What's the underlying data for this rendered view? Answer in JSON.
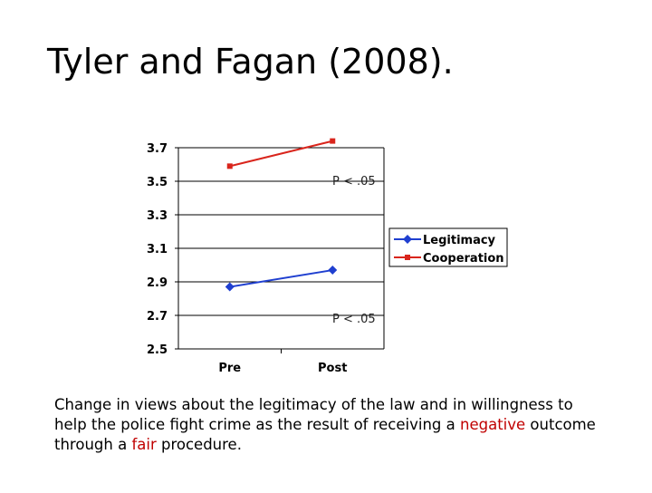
{
  "slide": {
    "title": "Tyler and Fagan (2008).",
    "caption": {
      "part1": "Change in views about the legitimacy of the law and in willingness to help the police fight crime as the result of receiving a ",
      "highlight1": "negative",
      "part2": " outcome through a ",
      "highlight2": "fair",
      "part3": " procedure."
    }
  },
  "chart_data": {
    "type": "line",
    "categories": [
      "Pre",
      "Post"
    ],
    "series": [
      {
        "name": "Legitimacy",
        "values": [
          2.87,
          2.97
        ],
        "color": "#1f3fd0",
        "marker": "diamond"
      },
      {
        "name": "Cooperation",
        "values": [
          3.59,
          3.74
        ],
        "color": "#d9251c",
        "marker": "square"
      }
    ],
    "ylim": [
      2.5,
      3.7
    ],
    "yticks": [
      "3.7",
      "3.5",
      "3.3",
      "3.1",
      "2.9",
      "2.7",
      "2.5"
    ],
    "grid": "horizontal",
    "legend": "right",
    "annotations": [
      "P < .05",
      "P < .05"
    ],
    "xlabel": "",
    "ylabel": ""
  }
}
